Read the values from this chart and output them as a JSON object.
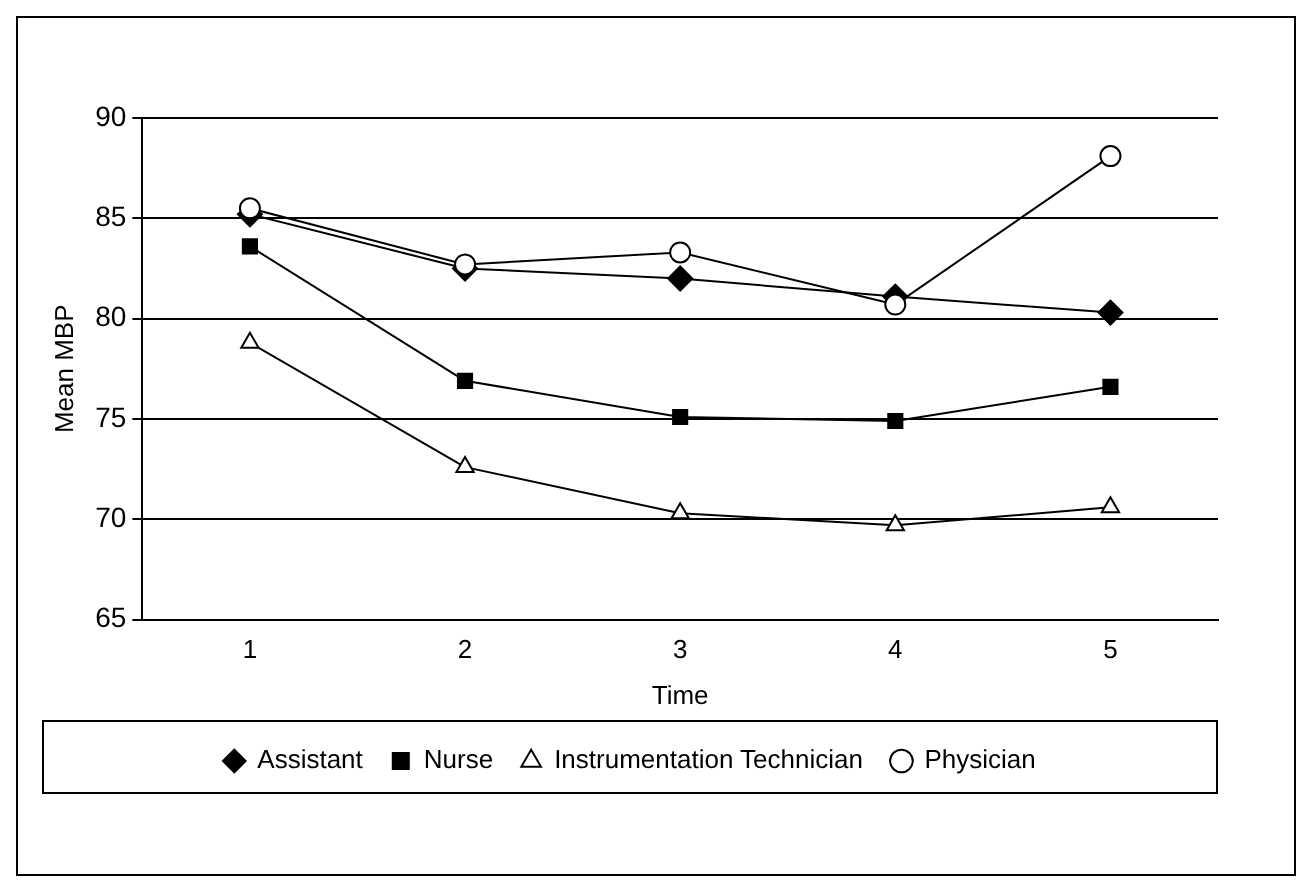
{
  "chart_data": {
    "type": "line",
    "xlabel": "Time",
    "ylabel": "Mean MBP",
    "categories": [
      "1",
      "2",
      "3",
      "4",
      "5"
    ],
    "series": [
      {
        "name": "Assistant",
        "color": "#000000",
        "marker": "diamond",
        "values": [
          85.2,
          82.5,
          82.0,
          81.1,
          80.3
        ]
      },
      {
        "name": "Nurse",
        "color": "#000000",
        "marker": "square",
        "values": [
          83.6,
          76.9,
          75.1,
          74.9,
          76.6
        ]
      },
      {
        "name": "Instrumentation Technician",
        "color": "#000000",
        "marker": "triangle",
        "values": [
          78.8,
          72.6,
          70.3,
          69.7,
          70.6
        ]
      },
      {
        "name": "Physician",
        "color": "#000000",
        "marker": "circle",
        "values": [
          85.5,
          82.7,
          83.3,
          80.7,
          88.1
        ]
      }
    ],
    "ylim": [
      65,
      90
    ],
    "yticks": [
      65,
      70,
      75,
      80,
      85,
      90
    ],
    "grid": "y",
    "legend": "bottom"
  }
}
